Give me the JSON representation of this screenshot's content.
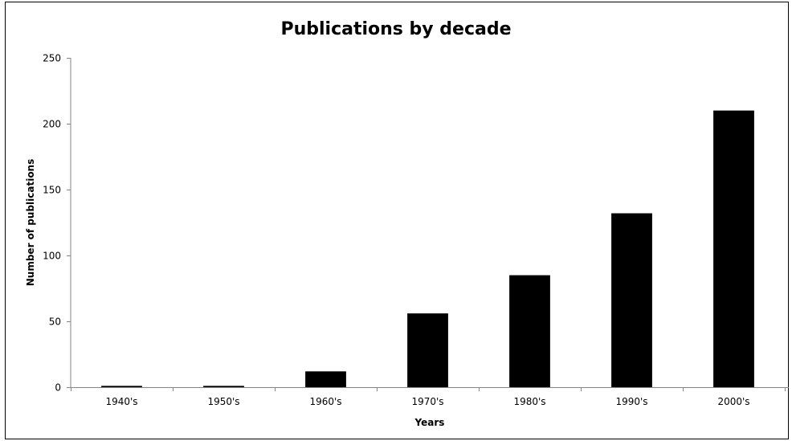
{
  "chart_data": {
    "type": "bar",
    "title": "Publications by decade",
    "xlabel": "Years",
    "ylabel": "Number of publications",
    "categories": [
      "1940's",
      "1950's",
      "1960's",
      "1970's",
      "1980's",
      "1990's",
      "2000's"
    ],
    "values": [
      1,
      1,
      12,
      56,
      85,
      132,
      210
    ],
    "ylim": [
      0,
      250
    ],
    "yticks": [
      0,
      50,
      100,
      150,
      200,
      250
    ],
    "grid": false,
    "legend": "none",
    "bar_color": "#000000"
  }
}
